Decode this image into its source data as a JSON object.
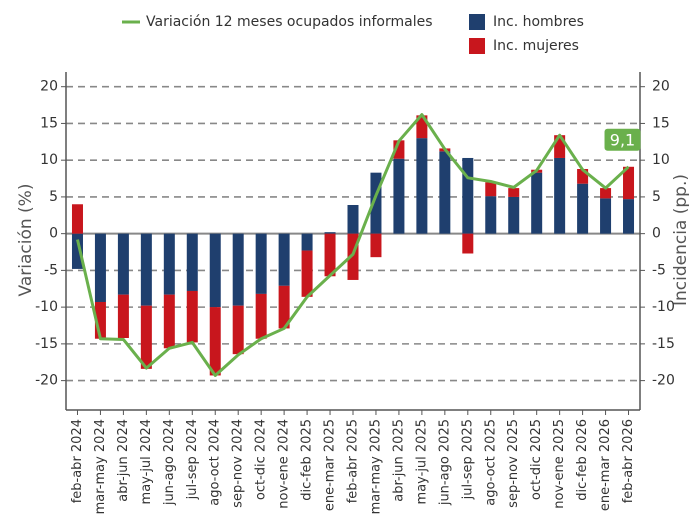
{
  "chart_data": {
    "type": "bar-line",
    "categories": [
      "feb-abr 2024",
      "mar-may 2024",
      "abr-jun 2024",
      "may-jul 2024",
      "jun-ago 2024",
      "jul-sep 2024",
      "ago-oct 2024",
      "sep-nov 2024",
      "oct-dic 2024",
      "nov-ene 2024",
      "dic-feb 2025",
      "ene-mar 2025",
      "feb-abr 2025",
      "mar-may 2025",
      "abr-jun 2025",
      "may-jul 2025",
      "jun-ago 2025",
      "jul-sep 2025",
      "ago-oct 2025",
      "sep-nov 2025",
      "oct-dic 2025",
      "nov-ene 2025",
      "dic-feb 2026",
      "ene-mar 2026",
      "feb-abr 2026"
    ],
    "series": [
      {
        "name": "Inc. hombres",
        "color": "#1f3f6e",
        "kind": "bar",
        "values": [
          -4.8,
          -9.3,
          -8.3,
          -9.8,
          -8.3,
          -7.8,
          -10,
          -9.8,
          -8.2,
          -7.1,
          -2.3,
          0.2,
          3.9,
          8.3,
          10.2,
          13,
          11.2,
          10.3,
          5.1,
          5,
          8.3,
          10.3,
          6.8,
          4.8,
          4.7
        ]
      },
      {
        "name": "Inc. mujeres",
        "color": "#c8161d",
        "kind": "bar",
        "values": [
          4,
          -5,
          -5.9,
          -8.6,
          -7.3,
          -7,
          -9.3,
          -6.6,
          -6.1,
          -5.8,
          -6.3,
          -5.8,
          -6.3,
          -3.2,
          2.5,
          3.1,
          0.4,
          -2.7,
          1.9,
          1.2,
          0.4,
          3.1,
          2,
          1.4,
          4.4
        ]
      },
      {
        "name": "Variación 12 meses ocupados informales",
        "color": "#6ab04c",
        "kind": "line",
        "values": [
          -0.8,
          -14.3,
          -14.4,
          -18.3,
          -15.6,
          -14.8,
          -19.3,
          -16.5,
          -14.3,
          -12.9,
          -8.6,
          -5.7,
          -2.8,
          5.2,
          12.6,
          16.2,
          11.5,
          7.6,
          7.1,
          6.3,
          8.6,
          13.4,
          8.7,
          6.2,
          9.1
        ],
        "value_labels": [
          null,
          null,
          null,
          null,
          null,
          null,
          null,
          null,
          null,
          null,
          null,
          null,
          null,
          null,
          null,
          null,
          null,
          null,
          null,
          null,
          null,
          null,
          null,
          null,
          "9,1"
        ]
      }
    ],
    "y_label": "Variación (%)",
    "y2_label": "Incidencia (pp.)",
    "ylim": [
      -24,
      22
    ],
    "yticks": [
      -20,
      -15,
      -10,
      -5,
      0,
      5,
      10,
      15,
      20
    ],
    "y2lim": [
      -24,
      22
    ],
    "y2ticks": [
      -20,
      -15,
      -10,
      -5,
      0,
      5,
      10,
      15,
      20
    ],
    "grid": true
  }
}
